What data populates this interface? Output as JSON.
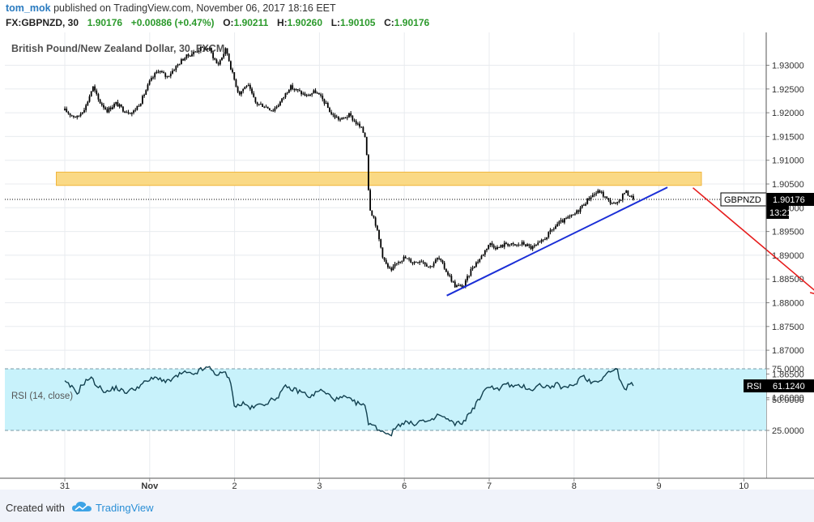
{
  "header": {
    "author": "tom_mok",
    "published_text": "published on TradingView.com, November 06, 2017 18:16 EET",
    "symbol_line": "FX:GBPNZD, 30",
    "last": "1.90176",
    "change": "+0.00886 (+0.47%)",
    "o_label": "O:",
    "o_value": "1.90211",
    "h_label": "H:",
    "h_value": "1.90260",
    "l_label": "L:",
    "l_value": "1.90105",
    "c_label": "C:",
    "c_value": "1.90176"
  },
  "footer": {
    "created_with": "Created with",
    "brand": "TradingView"
  },
  "colors": {
    "up": "#2c9a2c",
    "candle": "#000000",
    "zone_fill": "#fad985",
    "zone_stroke": "#f0b43a",
    "trendline": "#1a2ed6",
    "arrow": "#e61c1c",
    "rsi_line": "#11404f",
    "rsi_band": "#c8f2fb",
    "grid": "#e8ebef"
  },
  "chart_data": [
    {
      "type": "candlestick",
      "title": "British Pound/New Zealand Dollar, 30, FXCM",
      "symbol": "GBPNZD",
      "timeframe": "30",
      "last_price": 1.90176,
      "last_price_label": "1.90176",
      "countdown": "13:21",
      "ylim": [
        1.8575,
        1.934
      ],
      "y_ticks": [
        "1.93000",
        "1.92500",
        "1.92000",
        "1.91500",
        "1.91000",
        "1.90500",
        "1.90000",
        "1.89500",
        "1.89000",
        "1.88500",
        "1.88000",
        "1.87500",
        "1.87000",
        "1.86500",
        "1.86000"
      ],
      "x_ticks": [
        "31",
        "Nov",
        "2",
        "3",
        "6",
        "7",
        "8",
        "9",
        "10"
      ],
      "grid": true,
      "price_path": [
        {
          "x": 0.0,
          "y": 1.9205
        },
        {
          "x": 0.08,
          "y": 1.9195
        },
        {
          "x": 0.15,
          "y": 1.919
        },
        {
          "x": 0.25,
          "y": 1.9215
        },
        {
          "x": 0.33,
          "y": 1.9255
        },
        {
          "x": 0.4,
          "y": 1.9225
        },
        {
          "x": 0.5,
          "y": 1.9205
        },
        {
          "x": 0.6,
          "y": 1.922
        },
        {
          "x": 0.7,
          "y": 1.9205
        },
        {
          "x": 0.8,
          "y": 1.92
        },
        {
          "x": 0.9,
          "y": 1.9225
        },
        {
          "x": 1.0,
          "y": 1.9265
        },
        {
          "x": 1.1,
          "y": 1.929
        },
        {
          "x": 1.2,
          "y": 1.9275
        },
        {
          "x": 1.3,
          "y": 1.9295
        },
        {
          "x": 1.4,
          "y": 1.9315
        },
        {
          "x": 1.5,
          "y": 1.9325
        },
        {
          "x": 1.6,
          "y": 1.9335
        },
        {
          "x": 1.7,
          "y": 1.9335
        },
        {
          "x": 1.8,
          "y": 1.93
        },
        {
          "x": 1.9,
          "y": 1.9335
        },
        {
          "x": 1.97,
          "y": 1.9285
        },
        {
          "x": 2.05,
          "y": 1.924
        },
        {
          "x": 2.15,
          "y": 1.926
        },
        {
          "x": 2.25,
          "y": 1.922
        },
        {
          "x": 2.35,
          "y": 1.9215
        },
        {
          "x": 2.45,
          "y": 1.9205
        },
        {
          "x": 2.55,
          "y": 1.9225
        },
        {
          "x": 2.65,
          "y": 1.9255
        },
        {
          "x": 2.75,
          "y": 1.9245
        },
        {
          "x": 2.85,
          "y": 1.9235
        },
        {
          "x": 2.95,
          "y": 1.9245
        },
        {
          "x": 3.05,
          "y": 1.9225
        },
        {
          "x": 3.15,
          "y": 1.9195
        },
        {
          "x": 3.25,
          "y": 1.9185
        },
        {
          "x": 3.35,
          "y": 1.9195
        },
        {
          "x": 3.45,
          "y": 1.9175
        },
        {
          "x": 3.5,
          "y": 1.9165
        },
        {
          "x": 3.55,
          "y": 1.9145
        },
        {
          "x": 3.57,
          "y": 1.9055
        },
        {
          "x": 3.6,
          "y": 1.8995
        },
        {
          "x": 3.65,
          "y": 1.8975
        },
        {
          "x": 3.7,
          "y": 1.8935
        },
        {
          "x": 3.75,
          "y": 1.8895
        },
        {
          "x": 3.8,
          "y": 1.8875
        },
        {
          "x": 3.85,
          "y": 1.8865
        },
        {
          "x": 3.9,
          "y": 1.8885
        },
        {
          "x": 4.0,
          "y": 1.8895
        },
        {
          "x": 4.1,
          "y": 1.8885
        },
        {
          "x": 4.2,
          "y": 1.889
        },
        {
          "x": 4.3,
          "y": 1.8875
        },
        {
          "x": 4.4,
          "y": 1.8895
        },
        {
          "x": 4.5,
          "y": 1.8865
        },
        {
          "x": 4.6,
          "y": 1.8835
        },
        {
          "x": 4.7,
          "y": 1.8835
        },
        {
          "x": 4.8,
          "y": 1.8875
        },
        {
          "x": 4.9,
          "y": 1.8895
        },
        {
          "x": 5.0,
          "y": 1.8925
        },
        {
          "x": 5.1,
          "y": 1.8915
        },
        {
          "x": 5.2,
          "y": 1.8925
        },
        {
          "x": 5.3,
          "y": 1.892
        },
        {
          "x": 5.4,
          "y": 1.8925
        },
        {
          "x": 5.5,
          "y": 1.8915
        },
        {
          "x": 5.6,
          "y": 1.8925
        },
        {
          "x": 5.7,
          "y": 1.8945
        },
        {
          "x": 5.8,
          "y": 1.8965
        },
        {
          "x": 5.9,
          "y": 1.8975
        },
        {
          "x": 6.0,
          "y": 1.8985
        },
        {
          "x": 6.1,
          "y": 1.9005
        },
        {
          "x": 6.2,
          "y": 1.9025
        },
        {
          "x": 6.3,
          "y": 1.9035
        },
        {
          "x": 6.4,
          "y": 1.9015
        },
        {
          "x": 6.5,
          "y": 1.9005
        },
        {
          "x": 6.6,
          "y": 1.9035
        },
        {
          "x": 6.7,
          "y": 1.9018
        }
      ],
      "resistance_zone": [
        1.9047,
        1.9075
      ],
      "resistance_zone_x": [
        -0.1,
        7.5
      ],
      "trendline": {
        "x": [
          4.5,
          7.1
        ],
        "y": [
          1.8815,
          1.9043
        ]
      },
      "projection_arrow": {
        "x": [
          7.4,
          8.9
        ],
        "y": [
          1.9042,
          1.8816
        ]
      },
      "projection_line": {
        "x": [
          9.4,
          9.9
        ],
        "y": [
          1.878,
          1.8748
        ]
      }
    },
    {
      "type": "line",
      "title": "RSI (14, close)",
      "series": [
        {
          "name": "RSI",
          "values_by_x": [
            {
              "x": 0.0,
              "y": 64
            },
            {
              "x": 0.08,
              "y": 60
            },
            {
              "x": 0.15,
              "y": 55
            },
            {
              "x": 0.2,
              "y": 62
            },
            {
              "x": 0.3,
              "y": 68
            },
            {
              "x": 0.4,
              "y": 60
            },
            {
              "x": 0.5,
              "y": 56
            },
            {
              "x": 0.6,
              "y": 60
            },
            {
              "x": 0.7,
              "y": 56
            },
            {
              "x": 0.8,
              "y": 58
            },
            {
              "x": 0.9,
              "y": 62
            },
            {
              "x": 1.0,
              "y": 66
            },
            {
              "x": 1.1,
              "y": 68
            },
            {
              "x": 1.2,
              "y": 64
            },
            {
              "x": 1.3,
              "y": 68
            },
            {
              "x": 1.4,
              "y": 72
            },
            {
              "x": 1.5,
              "y": 70
            },
            {
              "x": 1.6,
              "y": 74
            },
            {
              "x": 1.7,
              "y": 76
            },
            {
              "x": 1.8,
              "y": 70
            },
            {
              "x": 1.9,
              "y": 72
            },
            {
              "x": 1.97,
              "y": 60
            },
            {
              "x": 2.0,
              "y": 44
            },
            {
              "x": 2.1,
              "y": 47
            },
            {
              "x": 2.2,
              "y": 43
            },
            {
              "x": 2.3,
              "y": 46
            },
            {
              "x": 2.4,
              "y": 48
            },
            {
              "x": 2.5,
              "y": 52
            },
            {
              "x": 2.6,
              "y": 60
            },
            {
              "x": 2.7,
              "y": 58
            },
            {
              "x": 2.8,
              "y": 56
            },
            {
              "x": 2.9,
              "y": 52
            },
            {
              "x": 3.0,
              "y": 58
            },
            {
              "x": 3.1,
              "y": 54
            },
            {
              "x": 3.2,
              "y": 50
            },
            {
              "x": 3.3,
              "y": 52
            },
            {
              "x": 3.4,
              "y": 48
            },
            {
              "x": 3.5,
              "y": 46
            },
            {
              "x": 3.55,
              "y": 43
            },
            {
              "x": 3.57,
              "y": 32
            },
            {
              "x": 3.65,
              "y": 28
            },
            {
              "x": 3.75,
              "y": 24
            },
            {
              "x": 3.85,
              "y": 22
            },
            {
              "x": 3.9,
              "y": 28
            },
            {
              "x": 4.0,
              "y": 32
            },
            {
              "x": 4.1,
              "y": 30
            },
            {
              "x": 4.2,
              "y": 33
            },
            {
              "x": 4.3,
              "y": 31
            },
            {
              "x": 4.4,
              "y": 38
            },
            {
              "x": 4.5,
              "y": 34
            },
            {
              "x": 4.6,
              "y": 30
            },
            {
              "x": 4.7,
              "y": 32
            },
            {
              "x": 4.8,
              "y": 42
            },
            {
              "x": 4.9,
              "y": 52
            },
            {
              "x": 5.0,
              "y": 62
            },
            {
              "x": 5.1,
              "y": 58
            },
            {
              "x": 5.2,
              "y": 63
            },
            {
              "x": 5.3,
              "y": 60
            },
            {
              "x": 5.4,
              "y": 61
            },
            {
              "x": 5.5,
              "y": 58
            },
            {
              "x": 5.6,
              "y": 62
            },
            {
              "x": 5.7,
              "y": 60
            },
            {
              "x": 5.8,
              "y": 62
            },
            {
              "x": 5.9,
              "y": 59
            },
            {
              "x": 6.0,
              "y": 62
            },
            {
              "x": 6.1,
              "y": 70
            },
            {
              "x": 6.2,
              "y": 64
            },
            {
              "x": 6.3,
              "y": 66
            },
            {
              "x": 6.4,
              "y": 72
            },
            {
              "x": 6.5,
              "y": 75
            },
            {
              "x": 6.55,
              "y": 65
            },
            {
              "x": 6.6,
              "y": 56
            },
            {
              "x": 6.65,
              "y": 63
            },
            {
              "x": 6.7,
              "y": 61
            }
          ]
        }
      ],
      "ylim": [
        16,
        84
      ],
      "y_ticks": [
        "75.0000",
        "50.0000",
        "25.0000"
      ],
      "bands": [
        25,
        75
      ],
      "last_value": 61.124,
      "last_value_label": "61.1240",
      "badge_label": "RSI"
    }
  ]
}
